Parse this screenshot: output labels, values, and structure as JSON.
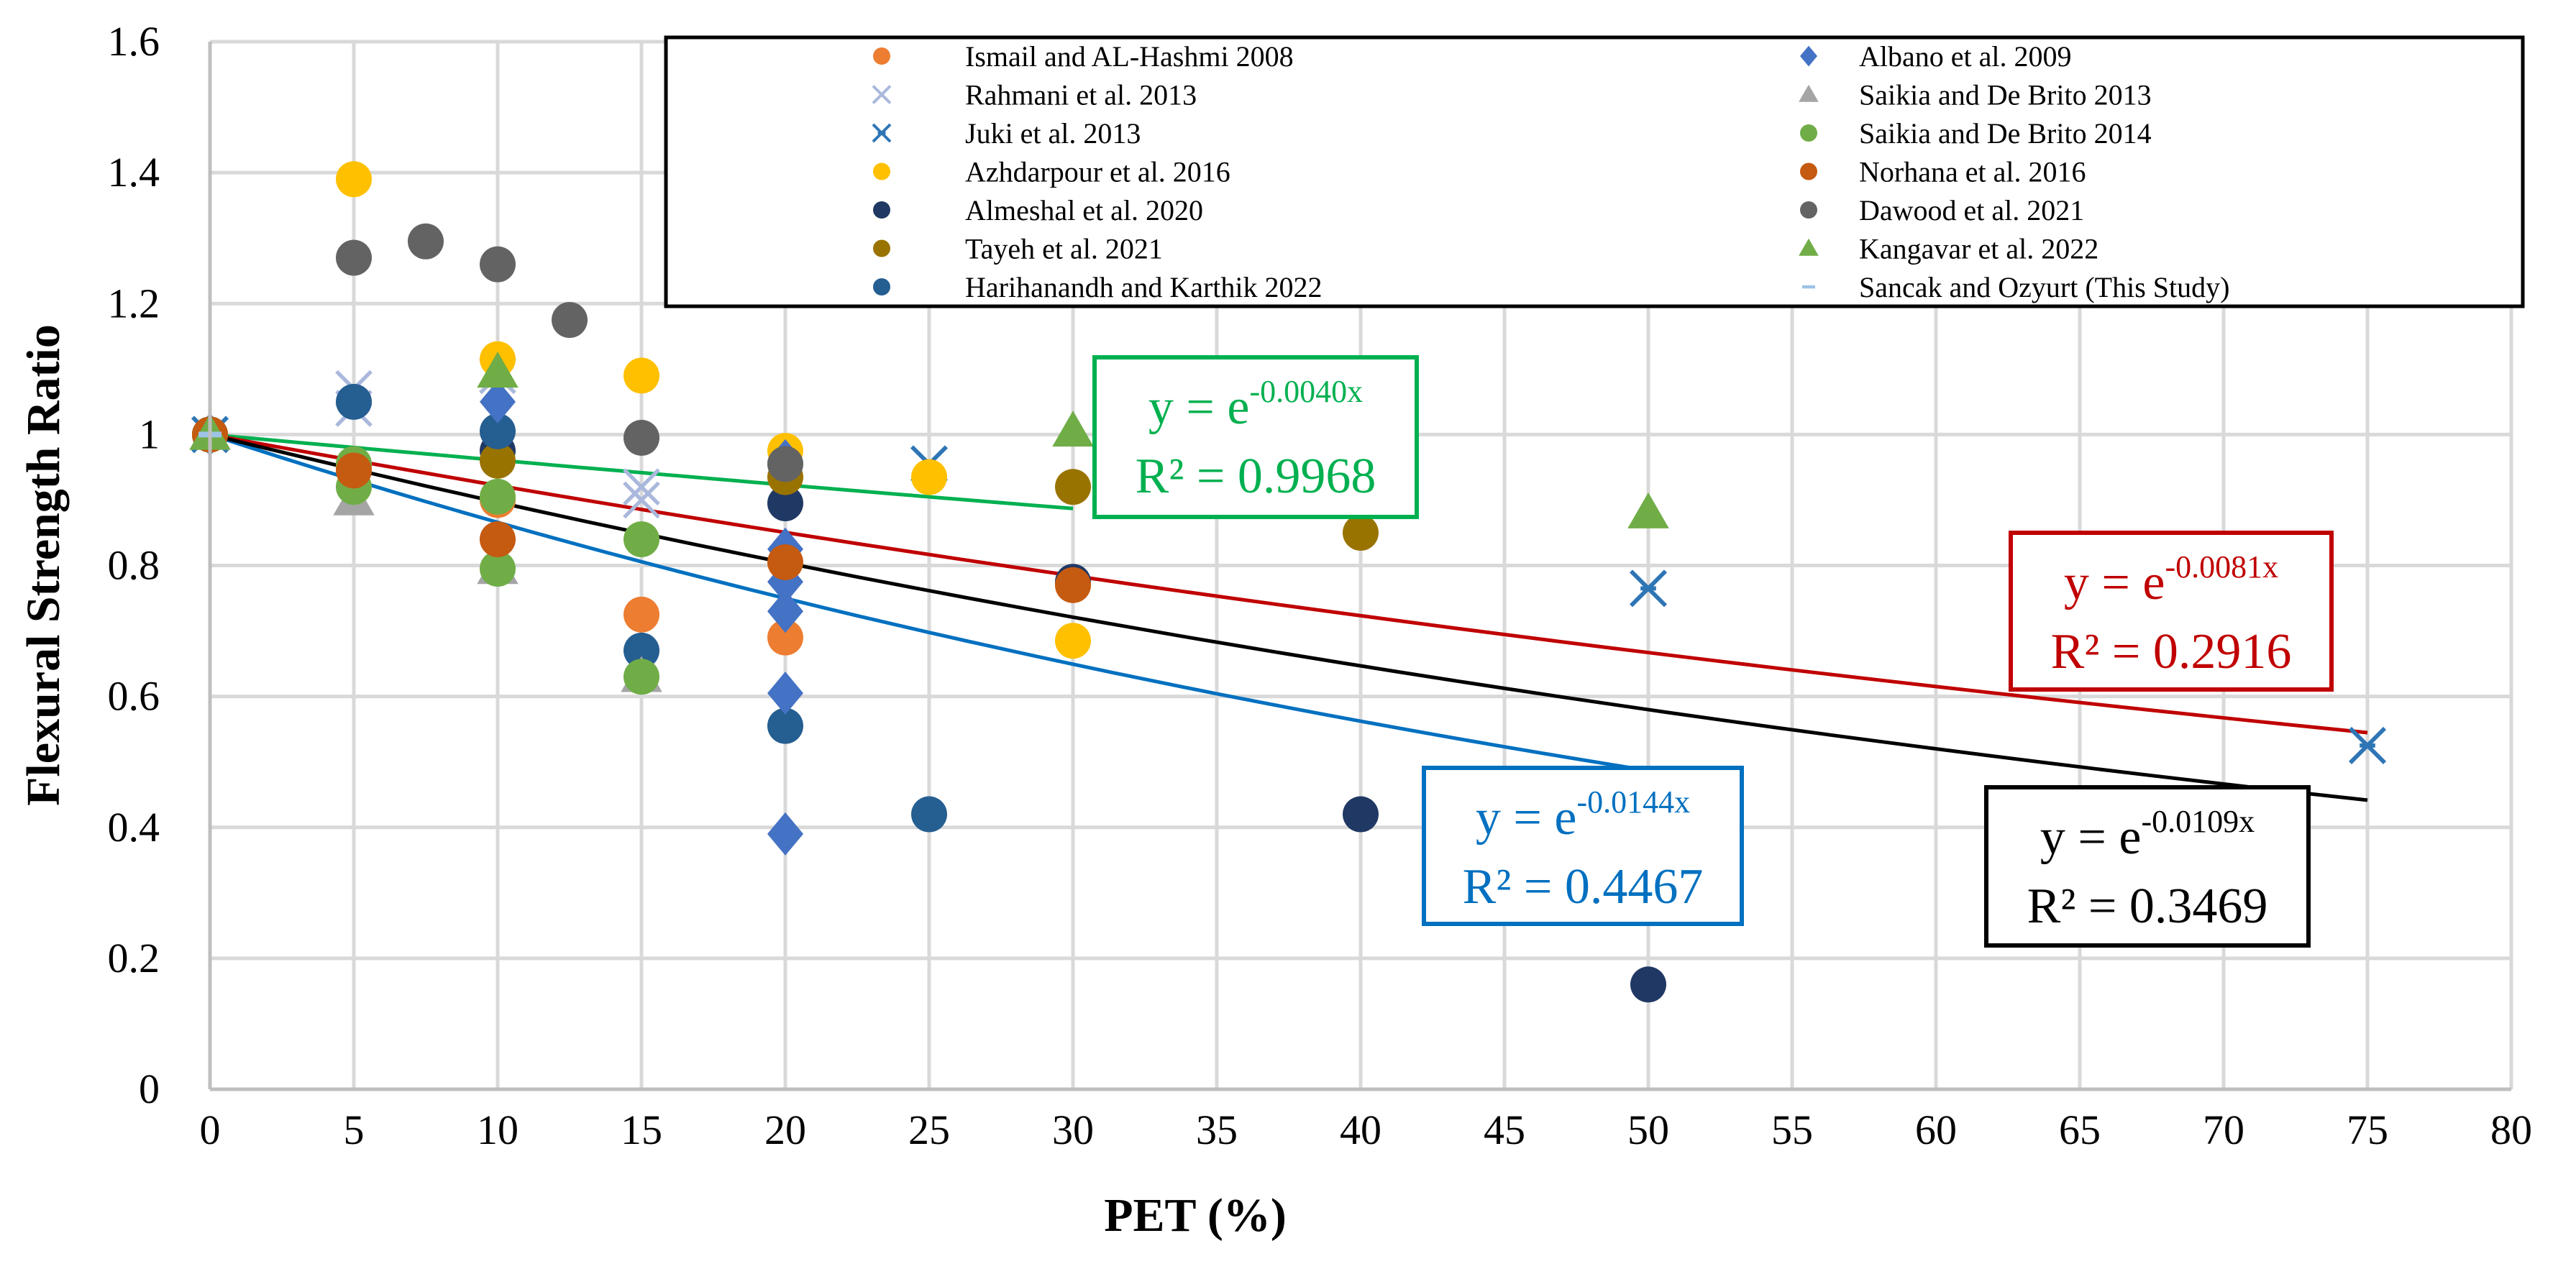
{
  "chart_data": {
    "type": "scatter",
    "xlabel": "PET (%)",
    "ylabel": "Flexural Strength Ratio",
    "xlim": [
      0,
      80
    ],
    "ylim": [
      0,
      1.6
    ],
    "xticks": [
      "0",
      "5",
      "10",
      "15",
      "20",
      "25",
      "30",
      "35",
      "40",
      "45",
      "50",
      "55",
      "60",
      "65",
      "70",
      "75",
      "80"
    ],
    "yticks": [
      "0",
      "0.2",
      "0.4",
      "0.6",
      "0.8",
      "1",
      "1.2",
      "1.4",
      "1.6"
    ],
    "grid": true,
    "legend_position": "top-right",
    "series": [
      {
        "name": "Ismail and AL-Hashmi 2008",
        "marker": "circle",
        "color": "#ED7D31",
        "points": [
          [
            0,
            1
          ],
          [
            5,
            0.95
          ],
          [
            10,
            0.9
          ],
          [
            15,
            0.725
          ],
          [
            20,
            0.69
          ]
        ]
      },
      {
        "name": "Rahmani et al. 2013",
        "marker": "x",
        "color": "#A9B8DC",
        "points": [
          [
            0,
            1
          ],
          [
            5,
            1.07
          ],
          [
            5,
            1.04
          ],
          [
            10,
            1.09
          ],
          [
            15,
            0.92
          ],
          [
            15,
            0.9
          ]
        ]
      },
      {
        "name": "Juki et al. 2013",
        "marker": "star",
        "color": "#2E75B6",
        "points": [
          [
            0,
            1
          ],
          [
            25,
            0.955
          ],
          [
            50,
            0.765
          ],
          [
            75,
            0.525
          ]
        ]
      },
      {
        "name": "Azhdarpour et al. 2016",
        "marker": "circle",
        "color": "#FFC000",
        "points": [
          [
            5,
            1.39
          ],
          [
            10,
            1.115
          ],
          [
            15,
            1.09
          ],
          [
            20,
            0.975
          ],
          [
            25,
            0.935
          ],
          [
            30,
            0.685
          ]
        ]
      },
      {
        "name": "Almeshal et al. 2020",
        "marker": "circle",
        "color": "#203864",
        "points": [
          [
            0,
            1
          ],
          [
            10,
            0.975
          ],
          [
            20,
            0.895
          ],
          [
            30,
            0.775
          ],
          [
            40,
            0.42
          ],
          [
            50,
            0.16
          ]
        ]
      },
      {
        "name": "Tayeh et al. 2021",
        "marker": "circle",
        "color": "#997300",
        "points": [
          [
            0,
            1
          ],
          [
            10,
            0.96
          ],
          [
            20,
            0.935
          ],
          [
            30,
            0.92
          ],
          [
            40,
            0.85
          ]
        ]
      },
      {
        "name": "Harihanandh and Karthik 2022",
        "marker": "circle",
        "color": "#255E91",
        "points": [
          [
            0,
            1
          ],
          [
            5,
            1.05
          ],
          [
            10,
            1.005
          ],
          [
            15,
            0.67
          ],
          [
            20,
            0.555
          ],
          [
            25,
            0.42
          ]
        ]
      },
      {
        "name": "Albano et al. 2009",
        "marker": "diamond",
        "color": "#4472C4",
        "points": [
          [
            0,
            1
          ],
          [
            10,
            1.05
          ],
          [
            20,
            0.96
          ],
          [
            20,
            0.825
          ],
          [
            20,
            0.775
          ],
          [
            20,
            0.73
          ],
          [
            20,
            0.605
          ],
          [
            20,
            0.39
          ]
        ]
      },
      {
        "name": "Saikia and De Brito 2013",
        "marker": "triangle",
        "color": "#A5A5A5",
        "points": [
          [
            0,
            1
          ],
          [
            5,
            0.9
          ],
          [
            10,
            0.795
          ],
          [
            15,
            0.63
          ]
        ]
      },
      {
        "name": "Saikia and De Brito 2014",
        "marker": "circle",
        "color": "#70AD47",
        "points": [
          [
            0,
            1
          ],
          [
            5,
            0.955
          ],
          [
            5,
            0.92
          ],
          [
            10,
            0.905
          ],
          [
            10,
            0.795
          ],
          [
            15,
            0.84
          ],
          [
            15,
            0.63
          ]
        ]
      },
      {
        "name": "Norhana et al. 2016",
        "marker": "circle",
        "color": "#C55A11",
        "points": [
          [
            0,
            1
          ],
          [
            5,
            0.945
          ],
          [
            10,
            0.84
          ],
          [
            20,
            0.805
          ],
          [
            30,
            0.77
          ]
        ]
      },
      {
        "name": "Dawood et al. 2021",
        "marker": "circle",
        "color": "#636363",
        "points": [
          [
            5,
            1.27
          ],
          [
            7.5,
            1.295
          ],
          [
            10,
            1.26
          ],
          [
            12.5,
            1.175
          ],
          [
            15,
            0.995
          ],
          [
            20,
            0.955
          ]
        ]
      },
      {
        "name": "Kangavar et al. 2022",
        "marker": "triangle",
        "color": "#70AD47",
        "points": [
          [
            0,
            1
          ],
          [
            10,
            1.095
          ],
          [
            30,
            1.005
          ],
          [
            50,
            0.88
          ]
        ]
      },
      {
        "name": "Sancak and Ozyurt (This Study)",
        "marker": "dash",
        "color": "#9DC3E6",
        "points": [
          [
            0,
            1
          ]
        ]
      }
    ],
    "trendlines": [
      {
        "color": "#00B050",
        "k": -0.004,
        "x": [
          0,
          30
        ],
        "equation_base": "y = e",
        "equation_exp": "-0.0040x",
        "r2": "R² = 0.9968"
      },
      {
        "color": "#C00000",
        "k": -0.0081,
        "x": [
          0,
          75
        ],
        "equation_base": "y = e",
        "equation_exp": "-0.0081x",
        "r2": "R² = 0.2916"
      },
      {
        "color": "#0070C0",
        "k": -0.0144,
        "x": [
          0,
          50
        ],
        "equation_base": "y = e",
        "equation_exp": "-0.0144x",
        "r2": "R² = 0.4467"
      },
      {
        "color": "#000000",
        "k": -0.0109,
        "x": [
          0,
          75
        ],
        "equation_base": "y = e",
        "equation_exp": "-0.0109x",
        "r2": "R² = 0.3469"
      }
    ]
  }
}
